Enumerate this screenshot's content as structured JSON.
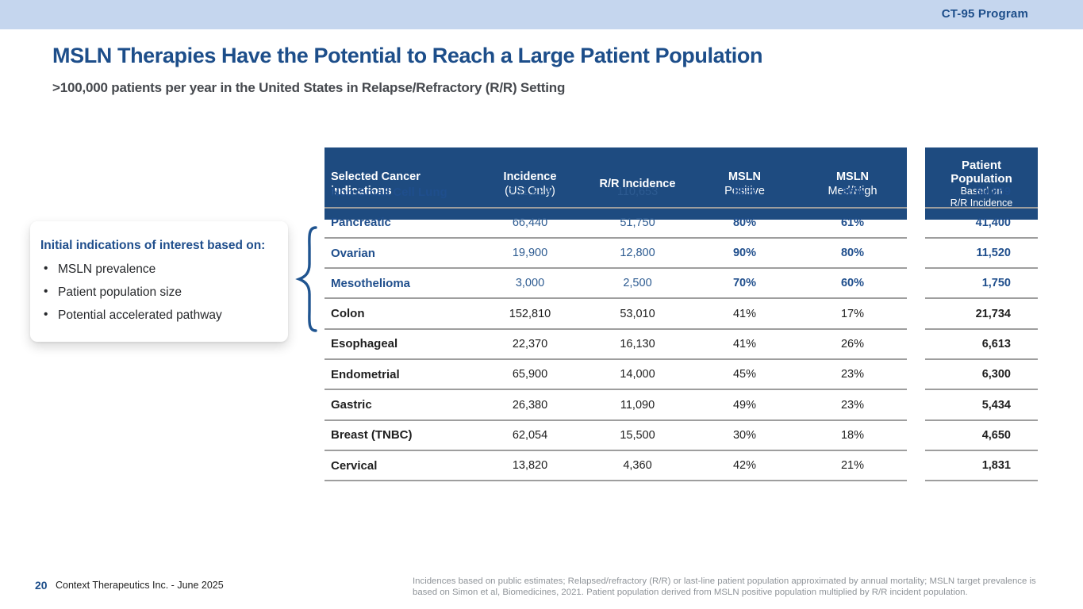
{
  "banner": {
    "program": "CT-95 Program"
  },
  "slide": {
    "title": "MSLN Therapies Have the Potential to Reach a Large Patient Population",
    "subtitle": ">100,000 patients per year in the United States in Relapse/Refractory (R/R) Setting"
  },
  "callout": {
    "title": "Initial indications of interest based on:",
    "bullets": [
      "MSLN prevalence",
      "Patient population size",
      "Potential accelerated pathway"
    ]
  },
  "table": {
    "header": {
      "indication_l1": "Selected Cancer",
      "indication_l2": "indications",
      "incidence_l1": "Incidence",
      "incidence_l2": "(US Only)",
      "rr_incidence": "R/R Incidence",
      "msln_positive_l1": "MSLN",
      "msln_positive_l2": "Positive",
      "msln_medhigh_l1": "MSLN",
      "msln_medhigh_l2": "Med/High"
    },
    "patient_header": {
      "l1": "Patient",
      "l2": "Population",
      "l3": "Based on",
      "l4": "R/R Incidence"
    },
    "rows": [
      {
        "name": "Non-Small Cell Lung",
        "incidence": "201,229",
        "rr": "110,653",
        "positive": "55%",
        "medhigh": "36%",
        "population": "60,859",
        "highlighted": true
      },
      {
        "name": "Pancreatic",
        "incidence": "66,440",
        "rr": "51,750",
        "positive": "80%",
        "medhigh": "61%",
        "population": "41,400",
        "highlighted": true
      },
      {
        "name": "Ovarian",
        "incidence": "19,900",
        "rr": "12,800",
        "positive": "90%",
        "medhigh": "80%",
        "population": "11,520",
        "highlighted": true
      },
      {
        "name": "Mesothelioma",
        "incidence": "3,000",
        "rr": "2,500",
        "positive": "70%",
        "medhigh": "60%",
        "population": "1,750",
        "highlighted": true
      },
      {
        "name": "Colon",
        "incidence": "152,810",
        "rr": "53,010",
        "positive": "41%",
        "medhigh": "17%",
        "population": "21,734",
        "highlighted": false
      },
      {
        "name": "Esophageal",
        "incidence": "22,370",
        "rr": "16,130",
        "positive": "41%",
        "medhigh": "26%",
        "population": "6,613",
        "highlighted": false
      },
      {
        "name": "Endometrial",
        "incidence": "65,900",
        "rr": "14,000",
        "positive": "45%",
        "medhigh": "23%",
        "population": "6,300",
        "highlighted": false
      },
      {
        "name": "Gastric",
        "incidence": "26,380",
        "rr": "11,090",
        "positive": "49%",
        "medhigh": "23%",
        "population": "5,434",
        "highlighted": false
      },
      {
        "name": "Breast (TNBC)",
        "incidence": "62,054",
        "rr": "15,500",
        "positive": "30%",
        "medhigh": "18%",
        "population": "4,650",
        "highlighted": false
      },
      {
        "name": "Cervical",
        "incidence": "13,820",
        "rr": "4,360",
        "positive": "42%",
        "medhigh": "21%",
        "population": "1,831",
        "highlighted": false
      }
    ]
  },
  "footer": {
    "page_number": "20",
    "company": "Context Therapeutics Inc. -  June 2025",
    "disclaimer": "Incidences based on public estimates; Relapsed/refractory (R/R) or last-line patient population approximated by annual mortality; MSLN target prevalence is based on Simon et al, Biomedicines, 2021. Patient population derived from MSLN positive population multiplied by R/R incident population."
  },
  "colors": {
    "banner_bg": "#c5d6ee",
    "brand_blue": "#1d4e8a",
    "table_header_bg": "#1e4b80",
    "highlight_text": "#1f4e8c",
    "separator": "#9e9e9e",
    "footnote_gray": "#8f9499"
  }
}
